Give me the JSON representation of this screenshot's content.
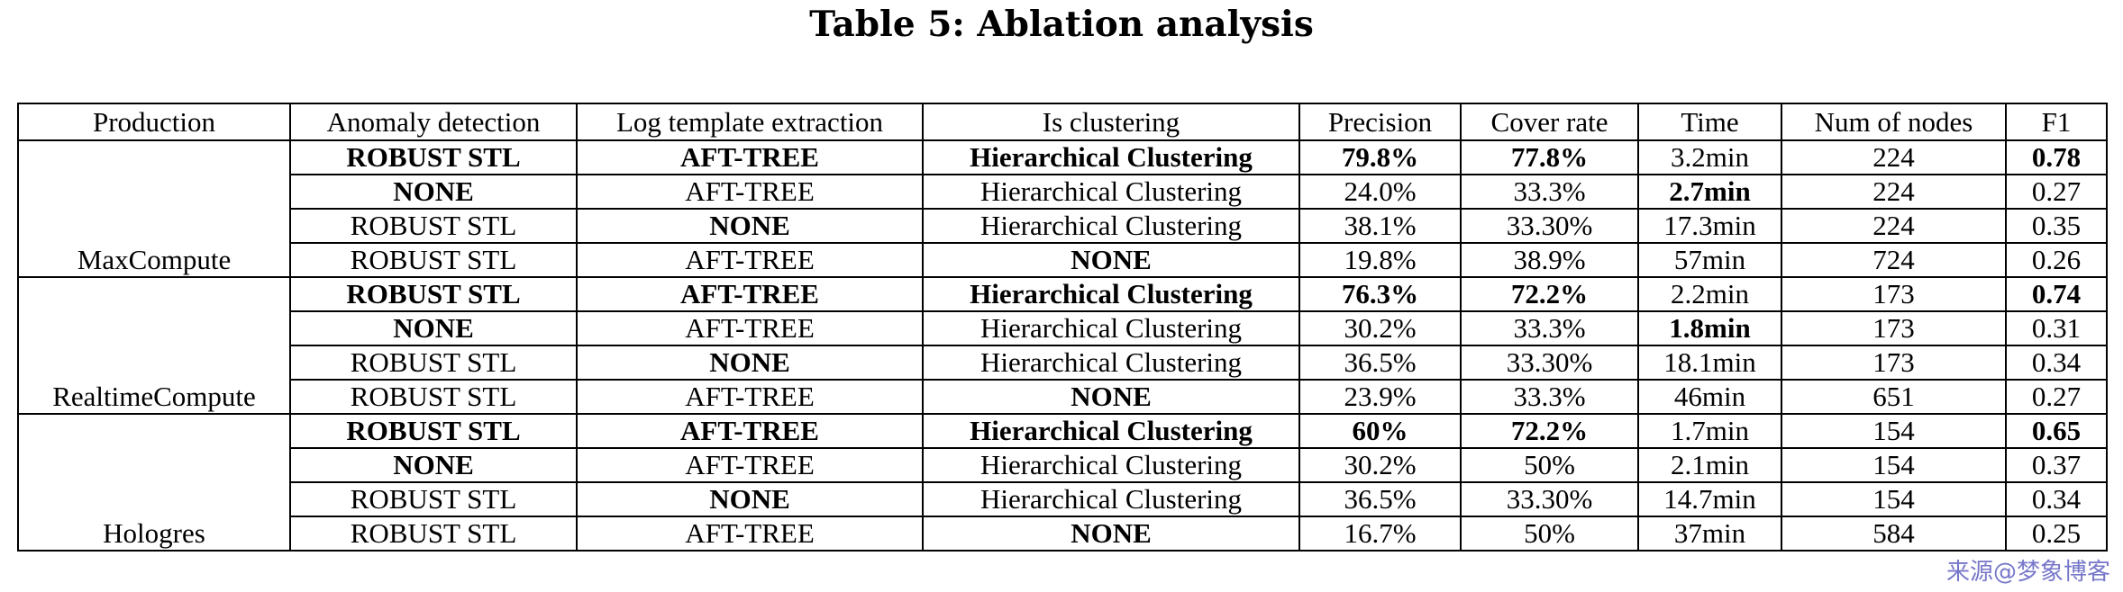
{
  "caption": "Table 5: Ablation analysis",
  "headers": [
    "Production",
    "Anomaly detection",
    "Log template extraction",
    "Is clustering",
    "Precision",
    "Cover rate",
    "Time",
    "Num of nodes",
    "F1"
  ],
  "groups": [
    {
      "production": "MaxCompute",
      "rows": [
        {
          "cells": [
            "ROBUST STL",
            "AFT-TREE",
            "Hierarchical Clustering",
            "79.8%",
            "77.8%",
            "3.2min",
            "224",
            "0.78"
          ],
          "bold": [
            true,
            true,
            true,
            true,
            true,
            false,
            false,
            true
          ]
        },
        {
          "cells": [
            "NONE",
            "AFT-TREE",
            "Hierarchical Clustering",
            "24.0%",
            "33.3%",
            "2.7min",
            "224",
            "0.27"
          ],
          "bold": [
            true,
            false,
            false,
            false,
            false,
            true,
            false,
            false
          ]
        },
        {
          "cells": [
            "ROBUST STL",
            "NONE",
            "Hierarchical Clustering",
            "38.1%",
            "33.30%",
            "17.3min",
            "224",
            "0.35"
          ],
          "bold": [
            false,
            true,
            false,
            false,
            false,
            false,
            false,
            false
          ]
        },
        {
          "cells": [
            "ROBUST STL",
            "AFT-TREE",
            "NONE",
            "19.8%",
            "38.9%",
            "57min",
            "724",
            "0.26"
          ],
          "bold": [
            false,
            false,
            true,
            false,
            false,
            false,
            false,
            false
          ]
        }
      ]
    },
    {
      "production": "RealtimeCompute",
      "rows": [
        {
          "cells": [
            "ROBUST STL",
            "AFT-TREE",
            "Hierarchical Clustering",
            "76.3%",
            "72.2%",
            "2.2min",
            "173",
            "0.74"
          ],
          "bold": [
            true,
            true,
            true,
            true,
            true,
            false,
            false,
            true
          ]
        },
        {
          "cells": [
            "NONE",
            "AFT-TREE",
            "Hierarchical Clustering",
            "30.2%",
            "33.3%",
            "1.8min",
            "173",
            "0.31"
          ],
          "bold": [
            true,
            false,
            false,
            false,
            false,
            true,
            false,
            false
          ]
        },
        {
          "cells": [
            "ROBUST STL",
            "NONE",
            "Hierarchical Clustering",
            "36.5%",
            "33.30%",
            "18.1min",
            "173",
            "0.34"
          ],
          "bold": [
            false,
            true,
            false,
            false,
            false,
            false,
            false,
            false
          ]
        },
        {
          "cells": [
            "ROBUST STL",
            "AFT-TREE",
            "NONE",
            "23.9%",
            "33.3%",
            "46min",
            "651",
            "0.27"
          ],
          "bold": [
            false,
            false,
            true,
            false,
            false,
            false,
            false,
            false
          ]
        }
      ]
    },
    {
      "production": "Hologres",
      "rows": [
        {
          "cells": [
            "ROBUST STL",
            "AFT-TREE",
            "Hierarchical Clustering",
            "60%",
            "72.2%",
            "1.7min",
            "154",
            "0.65"
          ],
          "bold": [
            true,
            true,
            true,
            true,
            true,
            false,
            false,
            true
          ]
        },
        {
          "cells": [
            "NONE",
            "AFT-TREE",
            "Hierarchical Clustering",
            "30.2%",
            "50%",
            "2.1min",
            "154",
            "0.37"
          ],
          "bold": [
            true,
            false,
            false,
            false,
            false,
            false,
            false,
            false
          ]
        },
        {
          "cells": [
            "ROBUST STL",
            "NONE",
            "Hierarchical Clustering",
            "36.5%",
            "33.30%",
            "14.7min",
            "154",
            "0.34"
          ],
          "bold": [
            false,
            true,
            false,
            false,
            false,
            false,
            false,
            false
          ]
        },
        {
          "cells": [
            "ROBUST STL",
            "AFT-TREE",
            "NONE",
            "16.7%",
            "50%",
            "37min",
            "584",
            "0.25"
          ],
          "bold": [
            false,
            false,
            true,
            false,
            false,
            false,
            false,
            false
          ]
        }
      ]
    }
  ],
  "watermark": "来源@梦象博客"
}
